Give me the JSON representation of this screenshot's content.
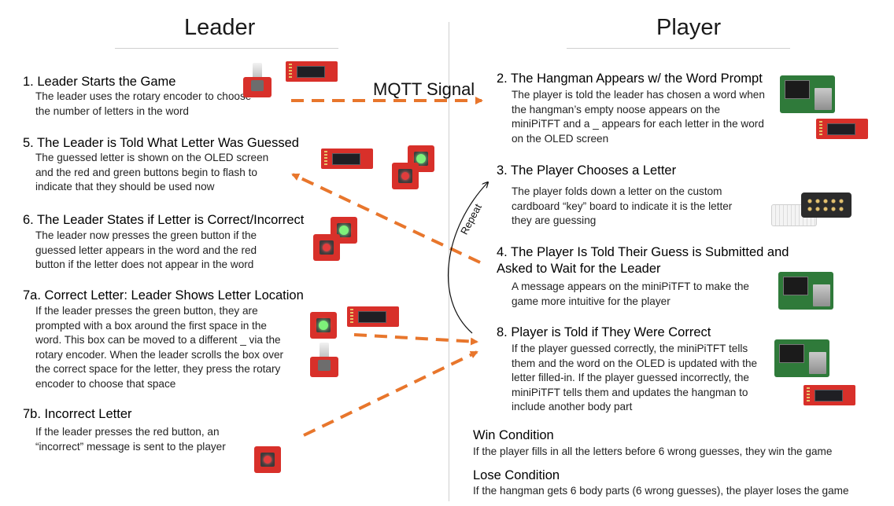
{
  "leader": {
    "title": "Leader",
    "steps": [
      {
        "title": "1. Leader Starts the Game",
        "body": "The leader uses the rotary encoder to choose the number of letters in the word"
      },
      {
        "title": "5. The Leader is Told What Letter Was Guessed",
        "body": "The guessed letter is shown on the OLED screen and the red and green buttons begin to flash to indicate that they should be used now"
      },
      {
        "title": "6. The Leader States if Letter is Correct/Incorrect",
        "body": "The leader now presses the green button if the guessed letter appears in the word and the red button if the letter does not appear in the word"
      },
      {
        "title": "7a. Correct Letter: Leader Shows Letter Location",
        "body": "If the leader presses the green button, they are prompted with a box around the first space in the word. This box can be moved to a different _ via the rotary encoder. When the leader scrolls the box over the correct space for the letter, they press the rotary encoder to choose that space"
      },
      {
        "title": "7b. Incorrect Letter",
        "body": "If the leader presses the red button, an “incorrect” message is sent to the player"
      }
    ]
  },
  "player": {
    "title": "Player",
    "steps": [
      {
        "title": "2. The Hangman Appears w/ the Word Prompt",
        "body": "The player is told the leader has chosen a word when the hangman’s empty noose appears on the miniPiTFT and a _ appears for each letter in the word on the OLED screen"
      },
      {
        "title": "3. The Player Chooses a Letter",
        "body": "The player folds down a letter on the custom cardboard “key” board to indicate it is the letter they are guessing"
      },
      {
        "title": "4. The Player Is Told Their Guess is Submitted and Asked to Wait for the Leader",
        "body": "A message appears on the miniPiTFT to make the game more intuitive for the player"
      },
      {
        "title": "8. Player is Told if They Were Correct",
        "body": "If the player guessed correctly, the miniPiTFT tells them and the word on the OLED is updated with the letter filled-in. If the player guessed incorrectly, the miniPiTFT tells them and updates the hangman to include another body part"
      }
    ]
  },
  "conditions": [
    {
      "title": "Win Condition",
      "body": "If the player fills in all the letters before 6 wrong guesses, they win the game"
    },
    {
      "title": "Lose Condition",
      "body": "If the hangman gets 6 body parts (6 wrong guesses), the player loses the game"
    }
  ],
  "labels": {
    "mqtt": "MQTT Signal",
    "repeat": "Repeat"
  },
  "colors": {
    "arrow": "#e8762c",
    "divider": "#cfcfcf",
    "board_red": "#d8302a",
    "pi_green": "#2f7a3a"
  },
  "icons": [
    "rotary-encoder-icon",
    "oled-display-icon",
    "red-button-icon",
    "green-button-icon",
    "raspberry-pi-icon",
    "keyboard-icon",
    "cardboard-key-board-icon"
  ]
}
